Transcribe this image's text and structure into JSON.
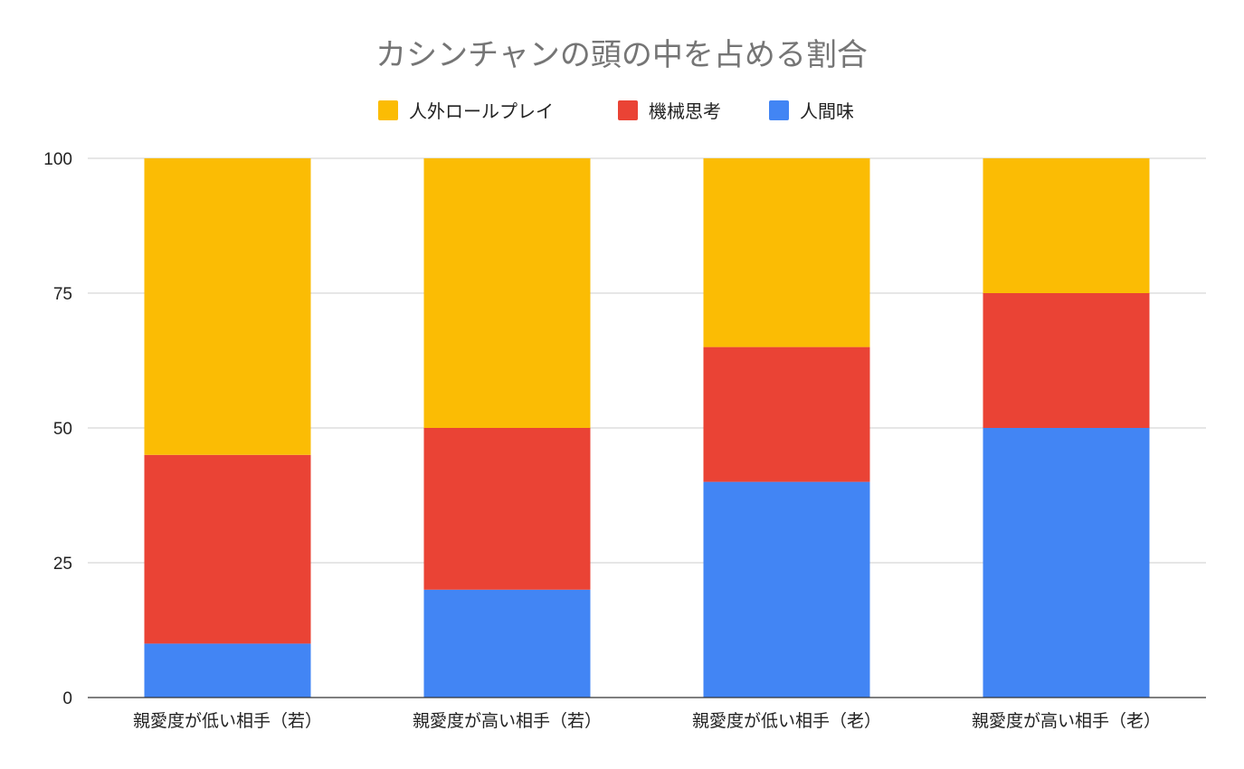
{
  "chart_data": {
    "type": "bar",
    "stacked": true,
    "title": "カシンチャンの頭の中を占める割合",
    "xlabel": "",
    "ylabel": "",
    "ylim": [
      0,
      100
    ],
    "yticks": [
      0,
      25,
      50,
      75,
      100
    ],
    "grid": true,
    "legend_position": "top",
    "categories": [
      "親愛度が低い相手（若）",
      "親愛度が高い相手（若）",
      "親愛度が低い相手（老）",
      "親愛度が高い相手（老）"
    ],
    "series": [
      {
        "name": "人間味",
        "color": "#4285f4",
        "values": [
          10,
          20,
          40,
          50
        ]
      },
      {
        "name": "機械思考",
        "color": "#ea4335",
        "values": [
          35,
          30,
          25,
          25
        ]
      },
      {
        "name": "人外ロールプレイ",
        "color": "#fbbc04",
        "values": [
          55,
          50,
          35,
          25
        ]
      }
    ],
    "legend_order": [
      "人外ロールプレイ",
      "機械思考",
      "人間味"
    ]
  }
}
